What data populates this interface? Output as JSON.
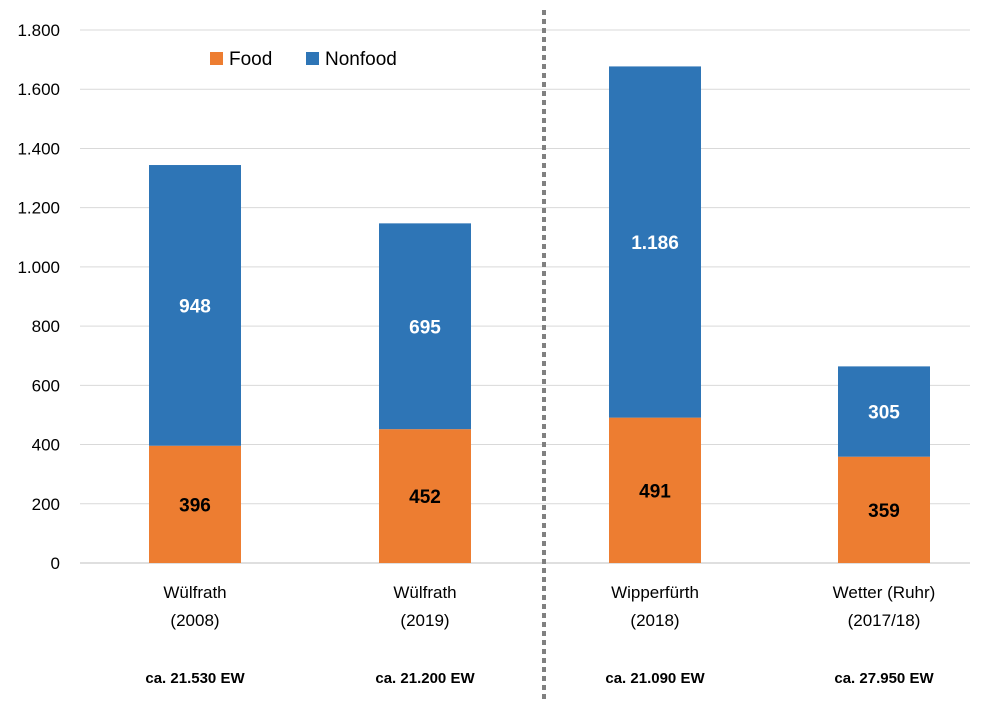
{
  "chart_data": {
    "type": "bar",
    "stacked": true,
    "categories": [
      [
        "Wülfrath",
        "(2008)"
      ],
      [
        "Wülfrath",
        "(2019)"
      ],
      [
        "Wipperfürth",
        "(2018)"
      ],
      [
        "Wetter (Ruhr)",
        "(2017/18)"
      ]
    ],
    "population_labels": [
      "ca. 21.530 EW",
      "ca. 21.200 EW",
      "ca. 21.090 EW",
      "ca. 27.950 EW"
    ],
    "series": [
      {
        "name": "Food",
        "color": "#ED7D31",
        "label_color": "#000000",
        "values": [
          396,
          452,
          491,
          359
        ],
        "labels": [
          "396",
          "452",
          "491",
          "359"
        ]
      },
      {
        "name": "Nonfood",
        "color": "#2E75B6",
        "label_color": "#ffffff",
        "values": [
          948,
          695,
          1186,
          305
        ],
        "labels": [
          "948",
          "695",
          "1.186",
          "305"
        ]
      }
    ],
    "ylim": [
      0,
      1800
    ],
    "yticks": [
      0,
      200,
      400,
      600,
      800,
      1000,
      1200,
      1400,
      1600,
      1800
    ],
    "ytick_labels": [
      "0",
      "200",
      "400",
      "600",
      "800",
      "1.000",
      "1.200",
      "1.400",
      "1.600",
      "1.800"
    ],
    "grid": true,
    "legend": "top-left",
    "separator": {
      "type": "dotted-vertical",
      "between_categories": [
        1,
        2
      ],
      "color": "#808080"
    }
  }
}
